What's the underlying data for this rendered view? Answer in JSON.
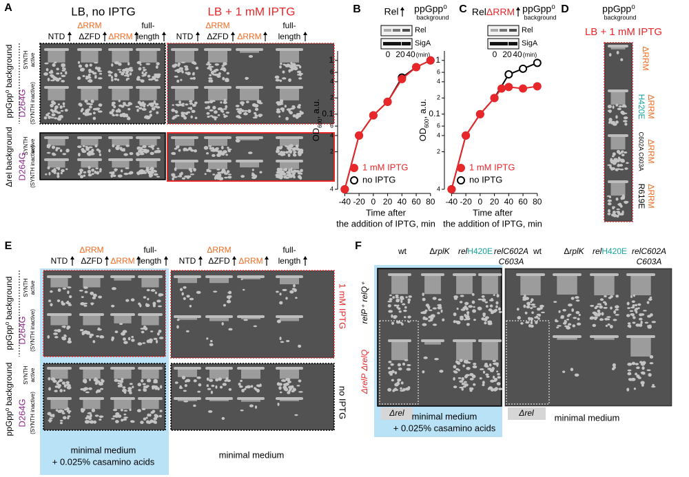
{
  "panel_a": {
    "letter": "A",
    "left_title": "LB, no IPTG",
    "right_title": "LB + 1 mM IPTG",
    "headers_left": [
      "NTD",
      "ΔRRM",
      "ΔZFD",
      "ΔRRM",
      "full-",
      "length"
    ],
    "headers_right": [
      "NTD",
      "ΔRRM",
      "ΔZFD",
      "ΔRRM",
      "full-",
      "length"
    ],
    "rows": [
      {
        "background": "ppGpp⁰ background",
        "synth": "SYNTH",
        "active": "active",
        "mutant": "D264G",
        "inactive": "(SYNTH inactive)"
      },
      {
        "background": "Δrel background",
        "synth": "SYNTH",
        "active": "active",
        "mutant": "D264G",
        "inactive": "(SYNTH inactive)"
      }
    ]
  },
  "panel_b": {
    "letter": "B",
    "protein": "Rel",
    "strain": "ppGpp⁰",
    "strain_note": "background",
    "blot": [
      "Rel",
      "SigA"
    ],
    "times": [
      "0",
      "20",
      "40",
      "(min)"
    ]
  },
  "panel_c": {
    "letter": "C",
    "protein": "Rel",
    "deletion": "ΔRRM",
    "strain": "ppGpp⁰",
    "strain_note": "background",
    "blot": [
      "Rel",
      "SigA"
    ],
    "times": [
      "0",
      "20",
      "40",
      "(min)"
    ]
  },
  "panel_d": {
    "letter": "D",
    "strain": "ppGpp⁰",
    "strain_note": "background",
    "condition": "LB + 1 mM IPTG",
    "rows": [
      [
        "ΔRRM"
      ],
      [
        "ΔRRM",
        "H420E"
      ],
      [
        "ΔRRM",
        "C602A C603A"
      ],
      [
        "ΔRRM",
        "R619E"
      ]
    ]
  },
  "panel_e": {
    "letter": "E",
    "headers_left": [
      "NTD",
      "ΔRRM",
      "ΔZFD",
      "ΔRRM",
      "full-",
      "length"
    ],
    "headers_right": [
      "NTD",
      "ΔRRM",
      "ΔZFD",
      "ΔRRM",
      "full-",
      "length"
    ],
    "rows": [
      {
        "background": "ppGpp⁰ background",
        "synth": "SYNTH",
        "active": "active",
        "mutant": "D264G",
        "inactive": "(SYNTH inactive)"
      },
      {
        "background": "ppGpp⁰ background",
        "synth": "SYNTH",
        "active": "active",
        "mutant": "D264G",
        "inactive": "(SYNTH inactive)"
      }
    ],
    "side": [
      "1 mM IPTG",
      "no IPTG"
    ],
    "bottom_left": [
      "minimal medium",
      "+ 0.025% casamino acids"
    ],
    "bottom_right": "minimal medium"
  },
  "panel_f": {
    "letter": "F",
    "headers_left": [
      [
        "wt"
      ],
      [
        "Δ",
        "rplK"
      ],
      [
        "rel",
        "H420E"
      ],
      [
        "relC602A"
      ],
      [
        "C603A"
      ]
    ],
    "headers_right": [
      [
        "wt"
      ],
      [
        "Δ",
        "rplK"
      ],
      [
        "rel",
        "H420E"
      ],
      [
        "relC602A"
      ],
      [
        "C603A"
      ]
    ],
    "rows": [
      [
        "relP⁺",
        "relQ⁺"
      ],
      [
        "ΔrelP",
        "ΔrelQ"
      ]
    ],
    "deletion": [
      "Δrel",
      "Δrel"
    ],
    "bottom_left": [
      "minimal medium",
      "+ 0.025% casamino acids"
    ],
    "bottom_right": "minimal medium"
  },
  "chart_data": [
    {
      "type": "line",
      "xlim": [
        -50,
        85
      ],
      "xticks": [
        -40,
        -20,
        0,
        20,
        40,
        60,
        80
      ],
      "ylim": [
        0.004,
        1.5
      ],
      "log_y": true,
      "yticks": [
        {
          "value": 0.004,
          "label": "4"
        },
        {
          "value": 0.02,
          "label": "2"
        },
        {
          "value": 0.04,
          "label": "4"
        },
        {
          "value": 0.06,
          "label": "6"
        },
        0.1,
        {
          "value": 0.2,
          "label": "2"
        },
        {
          "value": 0.4,
          "label": "4"
        },
        {
          "value": 0.6,
          "label": "6"
        },
        1
      ],
      "ylabel": [
        "OD",
        "600",
        ", a.u."
      ],
      "xlabel": [
        "Time after",
        "the addition of IPTG, min"
      ],
      "legend": "lower right",
      "series": [
        {
          "name": "1 mM IPTG",
          "color": "#e8272a",
          "filled": true,
          "x": [
            -40,
            -20,
            0,
            20,
            40,
            60,
            80
          ],
          "values": [
            0.004,
            0.04,
            0.095,
            0.17,
            0.45,
            0.75,
            1.0
          ]
        },
        {
          "name": "no IPTG",
          "color": "#000000",
          "filled": false,
          "x": [
            -40,
            -20,
            0,
            20,
            40,
            60,
            80
          ],
          "values": [
            0.004,
            0.04,
            0.095,
            0.17,
            0.48,
            0.75,
            1.0
          ]
        }
      ]
    },
    {
      "type": "line",
      "xlim": [
        -50,
        85
      ],
      "xticks": [
        -40,
        -20,
        0,
        20,
        40,
        60,
        80
      ],
      "ylim": [
        0.004,
        1.5
      ],
      "log_y": true,
      "yticks": [
        {
          "value": 0.004,
          "label": "4"
        },
        {
          "value": 0.02,
          "label": "2"
        },
        {
          "value": 0.04,
          "label": "4"
        },
        {
          "value": 0.06,
          "label": "6"
        },
        0.1,
        {
          "value": 0.2,
          "label": "2"
        },
        {
          "value": 0.4,
          "label": "4"
        },
        {
          "value": 0.6,
          "label": "6"
        },
        1
      ],
      "ylabel": [
        "OD",
        "600",
        ", a.u."
      ],
      "xlabel": [
        "Time after",
        "the addition of IPTG, min"
      ],
      "legend": "lower right",
      "series": [
        {
          "name": "1 mM IPTG",
          "color": "#e8272a",
          "filled": true,
          "x": [
            -40,
            -20,
            0,
            20,
            30,
            40,
            60,
            80
          ],
          "values": [
            0.004,
            0.04,
            0.1,
            0.2,
            0.3,
            0.32,
            0.3,
            0.33
          ]
        },
        {
          "name": "no IPTG",
          "color": "#000000",
          "filled": false,
          "x": [
            -40,
            -20,
            0,
            20,
            40,
            60,
            80
          ],
          "values": [
            0.004,
            0.04,
            0.1,
            0.2,
            0.55,
            0.7,
            0.9
          ]
        }
      ]
    }
  ]
}
